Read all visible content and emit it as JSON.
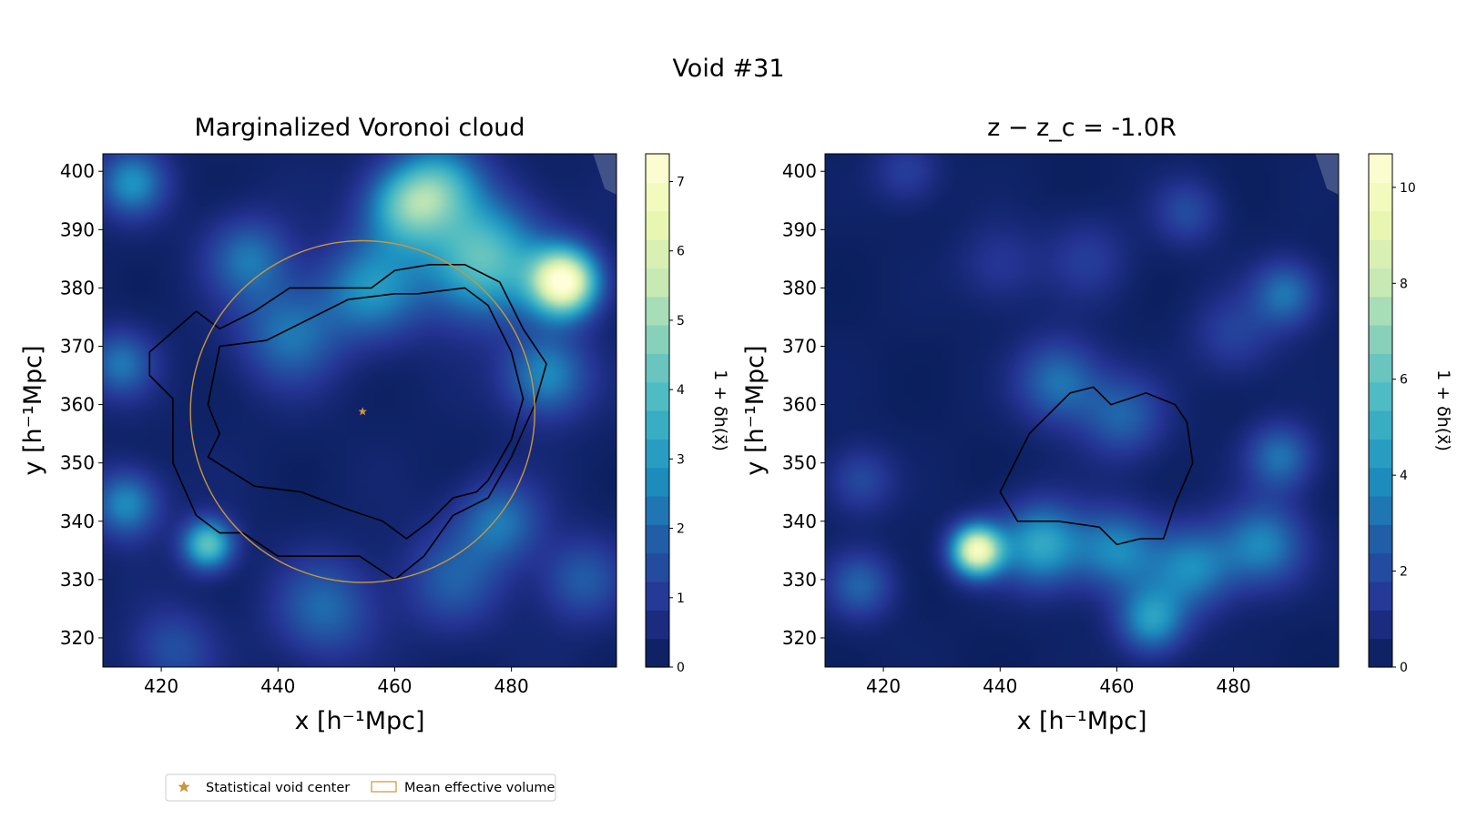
{
  "figure": {
    "suptitle": "Void #31",
    "legend": {
      "placement": "bottom-left",
      "items": [
        {
          "label": "Statistical void center",
          "marker": "star",
          "color": "#c8963c"
        },
        {
          "label": "Mean effective volume",
          "marker": "rect-outline",
          "color": "#c8963c"
        }
      ]
    }
  },
  "chart_data": [
    {
      "type": "heatmap",
      "title": "Marginalized Voronoi cloud",
      "xlabel": "x [h⁻¹Mpc]",
      "ylabel": "y [h⁻¹Mpc]",
      "xlim": [
        410,
        498
      ],
      "ylim": [
        315,
        403
      ],
      "xticks": [
        420,
        440,
        460,
        480
      ],
      "yticks": [
        320,
        330,
        340,
        350,
        360,
        370,
        380,
        390,
        400
      ],
      "colormap": "YlGnBu",
      "colorbar": {
        "label": "1 + δh(x⃗)",
        "range": [
          0,
          7.4
        ],
        "ticks": [
          0,
          1,
          2,
          3,
          4,
          5,
          6,
          7
        ]
      },
      "blobs": [
        {
          "x": 475,
          "y": 385,
          "v": 4.0,
          "s": 7
        },
        {
          "x": 489,
          "y": 381,
          "v": 7.0,
          "s": 4
        },
        {
          "x": 462,
          "y": 394,
          "v": 3.5,
          "s": 5
        },
        {
          "x": 468,
          "y": 398,
          "v": 2.5,
          "s": 5
        },
        {
          "x": 456,
          "y": 380,
          "v": 2.5,
          "s": 6
        },
        {
          "x": 442,
          "y": 372,
          "v": 2.0,
          "s": 6
        },
        {
          "x": 435,
          "y": 385,
          "v": 2.0,
          "s": 5
        },
        {
          "x": 415,
          "y": 398,
          "v": 2.5,
          "s": 4
        },
        {
          "x": 428,
          "y": 336,
          "v": 4.0,
          "s": 3
        },
        {
          "x": 414,
          "y": 343,
          "v": 2.5,
          "s": 4
        },
        {
          "x": 486,
          "y": 365,
          "v": 2.5,
          "s": 5
        },
        {
          "x": 478,
          "y": 340,
          "v": 2.0,
          "s": 5
        },
        {
          "x": 448,
          "y": 325,
          "v": 1.8,
          "s": 6
        },
        {
          "x": 470,
          "y": 330,
          "v": 1.5,
          "s": 6
        },
        {
          "x": 413,
          "y": 367,
          "v": 2.0,
          "s": 4
        },
        {
          "x": 492,
          "y": 330,
          "v": 1.5,
          "s": 5
        },
        {
          "x": 422,
          "y": 318,
          "v": 1.3,
          "s": 5
        }
      ],
      "contours": [
        [
          [
            426,
            376
          ],
          [
            418,
            369
          ],
          [
            418,
            365
          ],
          [
            422,
            361
          ],
          [
            422,
            350
          ],
          [
            426,
            341
          ],
          [
            430,
            338
          ],
          [
            434,
            338
          ],
          [
            440,
            334
          ],
          [
            447,
            334
          ],
          [
            454,
            334
          ],
          [
            460,
            330
          ],
          [
            465,
            334
          ],
          [
            470,
            341
          ],
          [
            476,
            344
          ],
          [
            480,
            351
          ],
          [
            484,
            360
          ],
          [
            486,
            367
          ],
          [
            482,
            373
          ],
          [
            478,
            381
          ],
          [
            472,
            384
          ],
          [
            466,
            384
          ],
          [
            460,
            383
          ],
          [
            456,
            380
          ],
          [
            450,
            380
          ],
          [
            442,
            380
          ],
          [
            436,
            376
          ],
          [
            430,
            373
          ],
          [
            426,
            376
          ]
        ],
        [
          [
            430,
            370
          ],
          [
            428,
            360
          ],
          [
            430,
            355
          ],
          [
            428,
            351
          ],
          [
            436,
            346
          ],
          [
            444,
            345
          ],
          [
            452,
            342
          ],
          [
            458,
            340
          ],
          [
            462,
            337
          ],
          [
            466,
            340
          ],
          [
            470,
            344
          ],
          [
            474,
            345
          ],
          [
            476,
            347
          ],
          [
            480,
            354
          ],
          [
            482,
            361
          ],
          [
            480,
            369
          ],
          [
            476,
            377
          ],
          [
            472,
            380
          ],
          [
            464,
            379
          ],
          [
            460,
            379
          ],
          [
            452,
            378
          ],
          [
            446,
            375
          ],
          [
            438,
            371
          ],
          [
            430,
            370
          ]
        ]
      ],
      "ellipse": {
        "cx": 454.5,
        "cy": 358.8,
        "rx": 29.5,
        "ry": 29.3,
        "color": "#c8963c"
      },
      "center": {
        "x": 454.5,
        "y": 358.8,
        "color": "#c8963c"
      },
      "masked_corner": true
    },
    {
      "type": "heatmap",
      "title": "z − z_c = -1.0R",
      "xlabel": "x [h⁻¹Mpc]",
      "ylabel": "y [h⁻¹Mpc]",
      "xlim": [
        410,
        498
      ],
      "ylim": [
        315,
        403
      ],
      "xticks": [
        420,
        440,
        460,
        480
      ],
      "yticks": [
        320,
        330,
        340,
        350,
        360,
        370,
        380,
        390,
        400
      ],
      "colormap": "YlGnBu",
      "colorbar": {
        "label": "1 + δh(x⃗)",
        "range": [
          0,
          10.7
        ],
        "ticks": [
          0,
          2,
          4,
          6,
          8,
          10
        ]
      },
      "blobs": [
        {
          "x": 436,
          "y": 335,
          "v": 9.5,
          "s": 3
        },
        {
          "x": 447,
          "y": 336,
          "v": 4.5,
          "s": 5
        },
        {
          "x": 460,
          "y": 335,
          "v": 3.5,
          "s": 5
        },
        {
          "x": 473,
          "y": 332,
          "v": 3.5,
          "s": 5
        },
        {
          "x": 485,
          "y": 336,
          "v": 3.5,
          "s": 5
        },
        {
          "x": 466,
          "y": 323,
          "v": 4.0,
          "s": 4
        },
        {
          "x": 450,
          "y": 364,
          "v": 3.0,
          "s": 5
        },
        {
          "x": 461,
          "y": 358,
          "v": 2.5,
          "s": 5
        },
        {
          "x": 488,
          "y": 351,
          "v": 3.0,
          "s": 4
        },
        {
          "x": 489,
          "y": 379,
          "v": 3.0,
          "s": 4
        },
        {
          "x": 416,
          "y": 329,
          "v": 2.5,
          "s": 4
        },
        {
          "x": 416,
          "y": 347,
          "v": 1.8,
          "s": 4
        },
        {
          "x": 424,
          "y": 400,
          "v": 1.5,
          "s": 4
        },
        {
          "x": 472,
          "y": 393,
          "v": 1.8,
          "s": 4
        },
        {
          "x": 455,
          "y": 385,
          "v": 1.3,
          "s": 5
        },
        {
          "x": 480,
          "y": 372,
          "v": 1.5,
          "s": 5
        },
        {
          "x": 440,
          "y": 384,
          "v": 1.2,
          "s": 5
        }
      ],
      "contours": [
        [
          [
            440,
            345
          ],
          [
            445,
            355
          ],
          [
            452,
            362
          ],
          [
            456,
            363
          ],
          [
            459,
            360
          ],
          [
            462,
            361
          ],
          [
            465,
            362
          ],
          [
            470,
            360
          ],
          [
            472,
            357
          ],
          [
            473,
            350
          ],
          [
            470,
            343
          ],
          [
            468,
            337
          ],
          [
            464,
            337
          ],
          [
            460,
            336
          ],
          [
            457,
            339
          ],
          [
            450,
            340
          ],
          [
            443,
            340
          ],
          [
            440,
            345
          ]
        ]
      ],
      "masked_corner": true
    }
  ]
}
